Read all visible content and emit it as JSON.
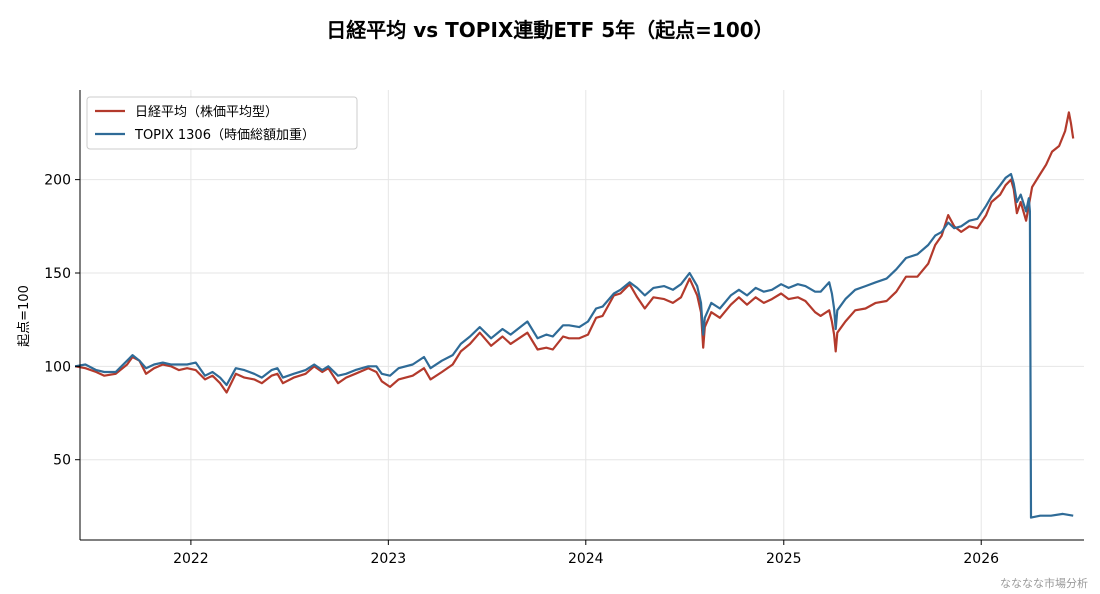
{
  "chart_data": {
    "type": "line",
    "title": "日経平均 vs TOPIX連動ETF 5年（起点=100）",
    "xlabel": "",
    "ylabel": "起点=100",
    "x_range": [
      "2021-06-10",
      "2026-07-10"
    ],
    "ylim": [
      7,
      248
    ],
    "x_ticks": [
      "2022",
      "2023",
      "2024",
      "2025",
      "2026"
    ],
    "y_ticks": [
      50,
      100,
      150,
      200
    ],
    "grid": true,
    "legend_position": "top-left",
    "colors": {
      "nikkei": "#b33a2c",
      "topix": "#2f6b97"
    },
    "series": [
      {
        "name": "日経平均（株価平均型）",
        "color": "#b33a2c",
        "points": [
          [
            "2021-06-01",
            100
          ],
          [
            "2021-06-20",
            99
          ],
          [
            "2021-07-10",
            97
          ],
          [
            "2021-07-25",
            95
          ],
          [
            "2021-08-15",
            96
          ],
          [
            "2021-09-05",
            101
          ],
          [
            "2021-09-15",
            105
          ],
          [
            "2021-09-28",
            103
          ],
          [
            "2021-10-10",
            96
          ],
          [
            "2021-10-25",
            99
          ],
          [
            "2021-11-10",
            101
          ],
          [
            "2021-11-25",
            100
          ],
          [
            "2021-12-10",
            98
          ],
          [
            "2021-12-25",
            99
          ],
          [
            "2022-01-10",
            98
          ],
          [
            "2022-01-27",
            93
          ],
          [
            "2022-02-10",
            95
          ],
          [
            "2022-02-24",
            91
          ],
          [
            "2022-03-08",
            86
          ],
          [
            "2022-03-25",
            96
          ],
          [
            "2022-04-10",
            94
          ],
          [
            "2022-04-28",
            93
          ],
          [
            "2022-05-12",
            91
          ],
          [
            "2022-05-30",
            95
          ],
          [
            "2022-06-10",
            96
          ],
          [
            "2022-06-20",
            91
          ],
          [
            "2022-07-10",
            94
          ],
          [
            "2022-08-01",
            96
          ],
          [
            "2022-08-17",
            100
          ],
          [
            "2022-09-01",
            97
          ],
          [
            "2022-09-12",
            99
          ],
          [
            "2022-09-30",
            91
          ],
          [
            "2022-10-15",
            94
          ],
          [
            "2022-11-01",
            96
          ],
          [
            "2022-11-25",
            99
          ],
          [
            "2022-12-10",
            97
          ],
          [
            "2022-12-20",
            92
          ],
          [
            "2023-01-04",
            89
          ],
          [
            "2023-01-20",
            93
          ],
          [
            "2023-02-15",
            95
          ],
          [
            "2023-03-08",
            99
          ],
          [
            "2023-03-20",
            93
          ],
          [
            "2023-04-10",
            97
          ],
          [
            "2023-04-30",
            101
          ],
          [
            "2023-05-15",
            108
          ],
          [
            "2023-06-01",
            112
          ],
          [
            "2023-06-19",
            118
          ],
          [
            "2023-07-10",
            111
          ],
          [
            "2023-07-31",
            116
          ],
          [
            "2023-08-15",
            112
          ],
          [
            "2023-09-15",
            118
          ],
          [
            "2023-10-04",
            109
          ],
          [
            "2023-10-20",
            110
          ],
          [
            "2023-11-01",
            109
          ],
          [
            "2023-11-20",
            116
          ],
          [
            "2023-12-01",
            115
          ],
          [
            "2023-12-20",
            115
          ],
          [
            "2024-01-05",
            117
          ],
          [
            "2024-01-20",
            126
          ],
          [
            "2024-02-01",
            127
          ],
          [
            "2024-02-22",
            138
          ],
          [
            "2024-03-05",
            139
          ],
          [
            "2024-03-22",
            144
          ],
          [
            "2024-04-05",
            137
          ],
          [
            "2024-04-19",
            131
          ],
          [
            "2024-05-05",
            137
          ],
          [
            "2024-05-25",
            136
          ],
          [
            "2024-06-10",
            134
          ],
          [
            "2024-06-25",
            137
          ],
          [
            "2024-07-11",
            147
          ],
          [
            "2024-07-25",
            138
          ],
          [
            "2024-08-01",
            129
          ],
          [
            "2024-08-05",
            110
          ],
          [
            "2024-08-08",
            121
          ],
          [
            "2024-08-20",
            129
          ],
          [
            "2024-09-05",
            126
          ],
          [
            "2024-09-25",
            133
          ],
          [
            "2024-10-10",
            137
          ],
          [
            "2024-10-25",
            133
          ],
          [
            "2024-11-10",
            137
          ],
          [
            "2024-11-25",
            134
          ],
          [
            "2024-12-10",
            136
          ],
          [
            "2024-12-27",
            139
          ],
          [
            "2025-01-10",
            136
          ],
          [
            "2025-01-27",
            137
          ],
          [
            "2025-02-10",
            135
          ],
          [
            "2025-02-28",
            129
          ],
          [
            "2025-03-10",
            127
          ],
          [
            "2025-03-26",
            130
          ],
          [
            "2025-03-31",
            124
          ],
          [
            "2025-04-04",
            117
          ],
          [
            "2025-04-07",
            108
          ],
          [
            "2025-04-10",
            118
          ],
          [
            "2025-04-25",
            124
          ],
          [
            "2025-05-13",
            130
          ],
          [
            "2025-06-01",
            131
          ],
          [
            "2025-06-20",
            134
          ],
          [
            "2025-07-10",
            135
          ],
          [
            "2025-07-28",
            140
          ],
          [
            "2025-08-15",
            148
          ],
          [
            "2025-09-05",
            148
          ],
          [
            "2025-09-25",
            155
          ],
          [
            "2025-10-08",
            165
          ],
          [
            "2025-10-20",
            170
          ],
          [
            "2025-11-01",
            181
          ],
          [
            "2025-11-12",
            175
          ],
          [
            "2025-11-25",
            172
          ],
          [
            "2025-12-10",
            175
          ],
          [
            "2025-12-25",
            174
          ],
          [
            "2026-01-10",
            181
          ],
          [
            "2026-01-20",
            188
          ],
          [
            "2026-02-05",
            192
          ],
          [
            "2026-02-15",
            197
          ],
          [
            "2026-02-25",
            200
          ],
          [
            "2026-03-02",
            195
          ],
          [
            "2026-03-08",
            182
          ],
          [
            "2026-03-15",
            188
          ],
          [
            "2026-03-25",
            178
          ],
          [
            "2026-04-05",
            196
          ],
          [
            "2026-04-20",
            203
          ],
          [
            "2026-05-01",
            208
          ],
          [
            "2026-05-12",
            215
          ],
          [
            "2026-05-25",
            218
          ],
          [
            "2026-06-05",
            226
          ],
          [
            "2026-06-12",
            236
          ],
          [
            "2026-06-16",
            230
          ],
          [
            "2026-06-20",
            222
          ]
        ]
      },
      {
        "name": "TOPIX 1306（時価総額加重）",
        "color": "#2f6b97",
        "points": [
          [
            "2021-06-01",
            100
          ],
          [
            "2021-06-20",
            101
          ],
          [
            "2021-07-10",
            98
          ],
          [
            "2021-07-25",
            97
          ],
          [
            "2021-08-15",
            97
          ],
          [
            "2021-09-05",
            103
          ],
          [
            "2021-09-15",
            106
          ],
          [
            "2021-09-28",
            103
          ],
          [
            "2021-10-10",
            99
          ],
          [
            "2021-10-25",
            101
          ],
          [
            "2021-11-10",
            102
          ],
          [
            "2021-11-25",
            101
          ],
          [
            "2021-12-10",
            101
          ],
          [
            "2021-12-25",
            101
          ],
          [
            "2022-01-10",
            102
          ],
          [
            "2022-01-27",
            95
          ],
          [
            "2022-02-10",
            97
          ],
          [
            "2022-02-24",
            94
          ],
          [
            "2022-03-08",
            90
          ],
          [
            "2022-03-25",
            99
          ],
          [
            "2022-04-10",
            98
          ],
          [
            "2022-04-28",
            96
          ],
          [
            "2022-05-12",
            94
          ],
          [
            "2022-05-30",
            98
          ],
          [
            "2022-06-10",
            99
          ],
          [
            "2022-06-20",
            94
          ],
          [
            "2022-07-10",
            96
          ],
          [
            "2022-08-01",
            98
          ],
          [
            "2022-08-17",
            101
          ],
          [
            "2022-09-01",
            98
          ],
          [
            "2022-09-12",
            100
          ],
          [
            "2022-09-30",
            95
          ],
          [
            "2022-10-15",
            96
          ],
          [
            "2022-11-01",
            98
          ],
          [
            "2022-11-25",
            100
          ],
          [
            "2022-12-10",
            100
          ],
          [
            "2022-12-20",
            96
          ],
          [
            "2023-01-04",
            95
          ],
          [
            "2023-01-20",
            99
          ],
          [
            "2023-02-15",
            101
          ],
          [
            "2023-03-08",
            105
          ],
          [
            "2023-03-20",
            99
          ],
          [
            "2023-04-10",
            103
          ],
          [
            "2023-04-30",
            106
          ],
          [
            "2023-05-15",
            112
          ],
          [
            "2023-06-01",
            116
          ],
          [
            "2023-06-19",
            121
          ],
          [
            "2023-07-10",
            115
          ],
          [
            "2023-07-31",
            120
          ],
          [
            "2023-08-15",
            117
          ],
          [
            "2023-09-15",
            124
          ],
          [
            "2023-10-04",
            115
          ],
          [
            "2023-10-20",
            117
          ],
          [
            "2023-11-01",
            116
          ],
          [
            "2023-11-20",
            122
          ],
          [
            "2023-12-01",
            122
          ],
          [
            "2023-12-20",
            121
          ],
          [
            "2024-01-05",
            124
          ],
          [
            "2024-01-20",
            131
          ],
          [
            "2024-02-01",
            132
          ],
          [
            "2024-02-22",
            139
          ],
          [
            "2024-03-05",
            141
          ],
          [
            "2024-03-22",
            145
          ],
          [
            "2024-04-05",
            142
          ],
          [
            "2024-04-19",
            138
          ],
          [
            "2024-05-05",
            142
          ],
          [
            "2024-05-25",
            143
          ],
          [
            "2024-06-10",
            141
          ],
          [
            "2024-06-25",
            144
          ],
          [
            "2024-07-11",
            150
          ],
          [
            "2024-07-25",
            143
          ],
          [
            "2024-08-01",
            134
          ],
          [
            "2024-08-05",
            117
          ],
          [
            "2024-08-08",
            126
          ],
          [
            "2024-08-20",
            134
          ],
          [
            "2024-09-05",
            131
          ],
          [
            "2024-09-25",
            138
          ],
          [
            "2024-10-10",
            141
          ],
          [
            "2024-10-25",
            138
          ],
          [
            "2024-11-10",
            142
          ],
          [
            "2024-11-25",
            140
          ],
          [
            "2024-12-10",
            141
          ],
          [
            "2024-12-27",
            144
          ],
          [
            "2025-01-10",
            142
          ],
          [
            "2025-01-27",
            144
          ],
          [
            "2025-02-10",
            143
          ],
          [
            "2025-02-28",
            140
          ],
          [
            "2025-03-10",
            140
          ],
          [
            "2025-03-26",
            145
          ],
          [
            "2025-03-31",
            139
          ],
          [
            "2025-04-04",
            131
          ],
          [
            "2025-04-07",
            120
          ],
          [
            "2025-04-10",
            130
          ],
          [
            "2025-04-25",
            136
          ],
          [
            "2025-05-13",
            141
          ],
          [
            "2025-06-01",
            143
          ],
          [
            "2025-06-20",
            145
          ],
          [
            "2025-07-10",
            147
          ],
          [
            "2025-07-28",
            152
          ],
          [
            "2025-08-15",
            158
          ],
          [
            "2025-09-05",
            160
          ],
          [
            "2025-09-25",
            165
          ],
          [
            "2025-10-08",
            170
          ],
          [
            "2025-10-20",
            172
          ],
          [
            "2025-11-01",
            177
          ],
          [
            "2025-11-12",
            174
          ],
          [
            "2025-11-25",
            175
          ],
          [
            "2025-12-10",
            178
          ],
          [
            "2025-12-25",
            179
          ],
          [
            "2026-01-10",
            186
          ],
          [
            "2026-01-20",
            191
          ],
          [
            "2026-02-05",
            197
          ],
          [
            "2026-02-15",
            201
          ],
          [
            "2026-02-25",
            203
          ],
          [
            "2026-03-02",
            198
          ],
          [
            "2026-03-08",
            188
          ],
          [
            "2026-03-15",
            192
          ],
          [
            "2026-03-25",
            183
          ],
          [
            "2026-03-30",
            190
          ],
          [
            "2026-04-01",
            183
          ],
          [
            "2026-04-03",
            19
          ],
          [
            "2026-04-20",
            20
          ],
          [
            "2026-05-10",
            20
          ],
          [
            "2026-06-01",
            21
          ],
          [
            "2026-06-20",
            20
          ]
        ]
      }
    ]
  },
  "credit": "なななな市場分析"
}
